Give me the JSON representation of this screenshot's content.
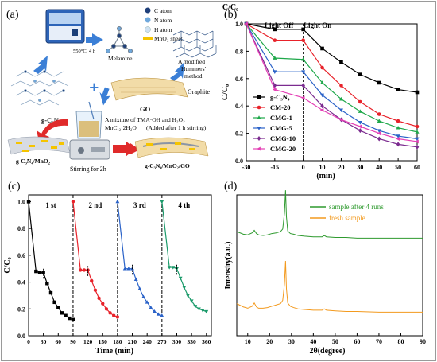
{
  "schematic": {
    "panel_label": "(a)",
    "legend": [
      "C atom",
      "N atom",
      "H atom",
      "MnO₂ sheet"
    ],
    "legend_colors": [
      "#1f3f7a",
      "#6fa8dc",
      "#cfe2f3",
      "#f5c400"
    ],
    "furnace_condition": "550°C, 4 h",
    "melamine": "Melamine",
    "hummers_line1": "A modified",
    "hummers_line2": "Hummers'",
    "hummers_line3": "method",
    "graphite": "Graphite",
    "gcn": "g-C₃N₄",
    "plus": "+",
    "go": "GO",
    "mixture_line1": "A mixture of TMA·OH and H₂O₂",
    "mixture_line2": "MnCl₂·2H₂O",
    "mixture_note": "(Added after 1 h stirring)",
    "stirring": "Stirring for 2h",
    "product_left": "g-C₃N₄/MnO₂",
    "product_right": "g-C₃N₄/MnO₂/GO"
  },
  "chart_data": [
    {
      "type": "line",
      "panel_label": "(b)",
      "x": [
        -30,
        -15,
        0,
        10,
        20,
        30,
        40,
        50,
        60
      ],
      "xticks": [
        -30,
        -15,
        0,
        10,
        20,
        30,
        40,
        50,
        60
      ],
      "yticks": [
        0.0,
        0.2,
        0.4,
        0.6,
        0.8,
        1.0
      ],
      "xlabel": "(min)",
      "ylabel": "C/C₀",
      "xlim": [
        -30,
        60
      ],
      "ylim": [
        0.0,
        1.0
      ],
      "annotations": [
        "Light Off",
        "Light On"
      ],
      "legend_position": "bottom-left",
      "series": [
        {
          "name": "g-C₃N₄",
          "color": "#000000",
          "marker": "square",
          "values": [
            1.0,
            0.96,
            0.96,
            0.82,
            0.72,
            0.63,
            0.57,
            0.52,
            0.5
          ]
        },
        {
          "name": "CM-20",
          "color": "#e8222a",
          "marker": "circle",
          "values": [
            1.0,
            0.88,
            0.88,
            0.68,
            0.55,
            0.43,
            0.34,
            0.29,
            0.25
          ]
        },
        {
          "name": "CMG-1",
          "color": "#1ea84a",
          "marker": "triangle-up",
          "values": [
            1.0,
            0.75,
            0.74,
            0.57,
            0.45,
            0.36,
            0.29,
            0.24,
            0.21
          ]
        },
        {
          "name": "CMG-5",
          "color": "#2a62c8",
          "marker": "triangle-down",
          "values": [
            1.0,
            0.65,
            0.65,
            0.48,
            0.37,
            0.28,
            0.22,
            0.18,
            0.16
          ]
        },
        {
          "name": "CMG-10",
          "color": "#7b2b8f",
          "marker": "diamond",
          "values": [
            1.0,
            0.55,
            0.55,
            0.4,
            0.3,
            0.22,
            0.16,
            0.12,
            0.1
          ]
        },
        {
          "name": "CMG-20",
          "color": "#e43fb5",
          "marker": "triangle-left",
          "values": [
            1.0,
            0.52,
            0.46,
            0.37,
            0.3,
            0.25,
            0.2,
            0.16,
            0.14
          ]
        }
      ]
    },
    {
      "type": "line",
      "panel_label": "(c)",
      "xticks": [
        0,
        30,
        60,
        90,
        120,
        150,
        180,
        210,
        240,
        270,
        300,
        330,
        360
      ],
      "yticks": [
        0.0,
        0.2,
        0.4,
        0.6,
        0.8,
        1.0
      ],
      "xlabel": "Time (min)",
      "ylabel": "C/C₀",
      "xlim": [
        0,
        370
      ],
      "ylim": [
        0.0,
        1.05
      ],
      "cycle_labels": [
        "1 st",
        "2 nd",
        "3 rd",
        "4 th"
      ],
      "series": [
        {
          "name": "1 st",
          "color": "#000000",
          "marker": "square",
          "x": [
            0,
            15,
            22.5,
            30,
            37.5,
            45,
            52.5,
            60,
            67.5,
            75,
            82.5,
            90
          ],
          "values": [
            1.0,
            0.48,
            0.47,
            0.47,
            0.39,
            0.32,
            0.25,
            0.21,
            0.17,
            0.15,
            0.13,
            0.12
          ]
        },
        {
          "name": "2 nd",
          "color": "#e8222a",
          "marker": "circle",
          "x": [
            90,
            105,
            112.5,
            120,
            127.5,
            135,
            142.5,
            150,
            157.5,
            165,
            172.5,
            180
          ],
          "values": [
            1.0,
            0.49,
            0.49,
            0.49,
            0.41,
            0.34,
            0.28,
            0.24,
            0.2,
            0.17,
            0.15,
            0.14
          ]
        },
        {
          "name": "3 rd",
          "color": "#2a62c8",
          "marker": "triangle-up",
          "x": [
            180,
            195,
            202.5,
            210,
            217.5,
            225,
            232.5,
            240,
            247.5,
            255,
            262.5,
            270
          ],
          "values": [
            1.0,
            0.5,
            0.5,
            0.5,
            0.42,
            0.35,
            0.29,
            0.25,
            0.21,
            0.18,
            0.16,
            0.15
          ]
        },
        {
          "name": "4 th",
          "color": "#1a9a6a",
          "marker": "triangle-down",
          "x": [
            270,
            285,
            292.5,
            300,
            307.5,
            315,
            322.5,
            330,
            337.5,
            345,
            352.5,
            360
          ],
          "values": [
            1.0,
            0.51,
            0.51,
            0.5,
            0.43,
            0.36,
            0.3,
            0.26,
            0.22,
            0.2,
            0.19,
            0.18
          ]
        }
      ]
    },
    {
      "type": "line",
      "panel_label": "(d)",
      "xticks": [
        10,
        20,
        30,
        40,
        50,
        60,
        70,
        80,
        90
      ],
      "xlabel": "2θ(degree)",
      "ylabel": "Intensity(a.u.)",
      "xlim": [
        5,
        90
      ],
      "legend_position": "top-right",
      "series": [
        {
          "name": "sample after 4 runs",
          "color": "#2e9a2e",
          "offset": 0.62,
          "x": [
            5,
            8,
            10,
            12,
            13,
            14,
            15,
            17,
            19,
            21,
            23,
            25,
            26,
            26.8,
            27.3,
            27.7,
            28.3,
            29.5,
            31,
            33,
            36,
            40,
            44,
            45,
            46,
            50,
            55,
            60,
            70,
            80,
            90
          ],
          "values": [
            0.12,
            0.08,
            0.07,
            0.1,
            0.14,
            0.09,
            0.07,
            0.06,
            0.07,
            0.09,
            0.1,
            0.12,
            0.16,
            0.4,
            0.75,
            0.35,
            0.13,
            0.09,
            0.08,
            0.06,
            0.05,
            0.04,
            0.04,
            0.06,
            0.04,
            0.03,
            0.03,
            0.02,
            0.02,
            0.02,
            0.02
          ]
        },
        {
          "name": "fresh sample",
          "color": "#f39a1e",
          "offset": 0.0,
          "x": [
            5,
            8,
            10,
            12,
            13,
            14,
            15,
            17,
            19,
            21,
            23,
            25,
            26,
            26.8,
            27.3,
            27.7,
            28.3,
            29.5,
            31,
            33,
            36,
            40,
            44,
            45,
            46,
            50,
            55,
            60,
            70,
            80,
            90
          ],
          "values": [
            0.15,
            0.1,
            0.08,
            0.11,
            0.16,
            0.1,
            0.08,
            0.08,
            0.09,
            0.11,
            0.13,
            0.15,
            0.2,
            0.45,
            0.8,
            0.38,
            0.16,
            0.11,
            0.09,
            0.07,
            0.06,
            0.05,
            0.05,
            0.07,
            0.05,
            0.04,
            0.03,
            0.03,
            0.02,
            0.02,
            0.02
          ]
        }
      ]
    }
  ]
}
